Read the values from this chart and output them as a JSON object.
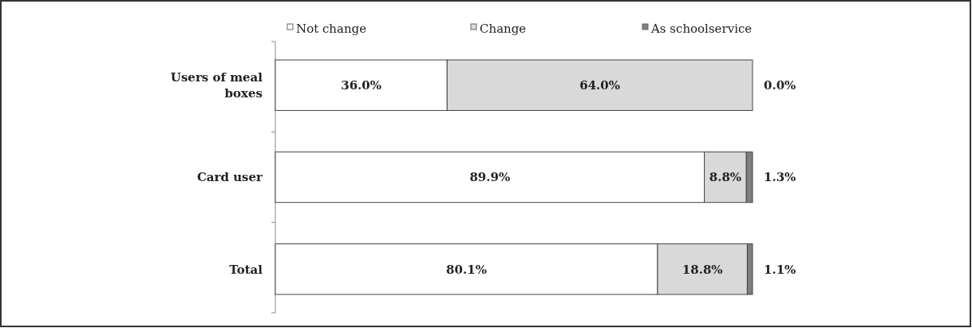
{
  "chart_data": {
    "type": "bar",
    "orientation": "horizontal",
    "stacked": true,
    "categories": [
      "Users of meal boxes",
      "Card user",
      "Total"
    ],
    "series": [
      {
        "name": "Not change",
        "color": "#ffffff",
        "values": [
          36.0,
          89.9,
          80.1
        ],
        "value_labels": [
          "36.0%",
          "89.9%",
          "80.1%"
        ]
      },
      {
        "name": "Change",
        "color": "#d9d9d9",
        "values": [
          64.0,
          8.8,
          18.8
        ],
        "value_labels": [
          "64.0%",
          "8.8%",
          "18.8%"
        ]
      },
      {
        "name": "As schoolservice",
        "color": "#7f7f7f",
        "values": [
          0.0,
          1.3,
          1.1
        ],
        "value_labels": [
          "0.0%",
          "1.3%",
          "1.1%"
        ]
      }
    ],
    "tick_labels": "y",
    "legend": "top"
  }
}
